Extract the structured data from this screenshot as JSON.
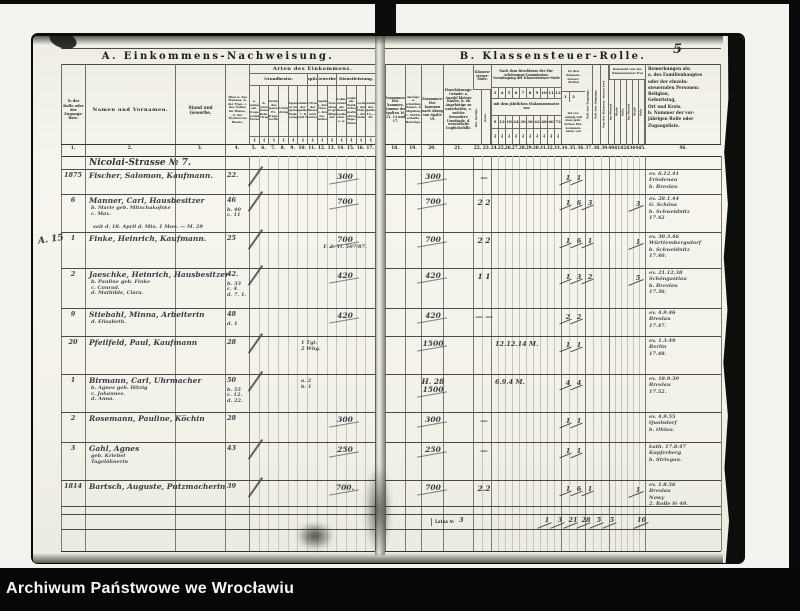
{
  "page_number": "5",
  "archive_bar": {
    "label": "Archiwum Państwowe we Wrocławiu"
  },
  "left_page": {
    "title": "A. Einkommens-Nachweisung.",
    "arten_header": "Arten des Einkommens.",
    "col_no": "№ der Rolle oder der Zugangs- liste.",
    "col_namen": "Namen und Vornamen.",
    "col_stand": "Stand und Gewerbe.",
    "col_alter": "Alter a. des Mannes, b. der Frau, c. der Söhne im Hause, d. der Töchter im Hause.",
    "groups": [
      {
        "label": "Grundbesitz.",
        "span": 6
      },
      {
        "label": "Kapital.",
        "span": 1
      },
      {
        "label": "Gewerbe.",
        "span": 2
      },
      {
        "label": "Dienstleistung.",
        "span": 4
      }
    ],
    "subcols": [
      "a. Regelmäßig ein- getragene Grund- stücke.",
      "b. Grund- steuer- Rein- ertrag.",
      "Betrag des ganzen Er- trags- werths.",
      "Wichtige Beiträge.",
      "Abgang bei der eigenen Woh- nung.",
      "Summe der Spalten 7, 8 und 9.",
      "Ertrag der Zinsen und Renten.",
      "Angabe a. der Frau, b. des Ge- sindes.",
      "Vom Betrage ist ge- fälligt auf",
      "Lohn, Gehalt als Diener, Gesellen, Boten u. s. w.",
      "Gewinn als Hand- werker, Künstler, Lehrer, Tage- löhner.",
      "Gewinn a. der Frau, b. der Kinder.",
      "Summe der Spalten 14.—16."
    ],
    "unit_mark": "₰",
    "col_numbers": [
      "1.",
      "2.",
      "3.",
      "4.",
      "5.",
      "6.",
      "7.",
      "8.",
      "9.",
      "10.",
      "11.",
      "12.",
      "13.",
      "14.",
      "15.",
      "16.",
      "17."
    ]
  },
  "right_page": {
    "title": "B. Klassensteuer-Rolle.",
    "col_zusammen": "Zusammen- Ein- kommen. Summe der Spalten 10, 11, 13 und 17.",
    "col_abzuege": "Abzüge: a. Schulden- Zinsen, b. Abgaben, c. Wirth- schafts- Beiträge.",
    "col_nach_abzug": "Zusammen- Ein- kommen nach Abzug von Spalte 19.",
    "col_gruende": "Einschätzungs- Gründe: a. Anzahl kleiner Kinder, b. ob Angehörige zu unterhalten, c. welche besondere Umstände, d. wesentliche Unglücksfälle.",
    "stufe_group": {
      "label": "Klassen- steuer- Stufe.",
      "subs": [
        "bis- herige.",
        "neue."
      ]
    },
    "commission_group": {
      "label": "Nach dem Beschlusse der Ein- schätzungs-Commission: Veranlagung der Klassensteuer-Stufe",
      "stufen": [
        "3",
        "4",
        "5",
        "6",
        "7",
        "8",
        "9",
        "10",
        "11",
        "12"
      ],
      "mid": "mit dem jährlichen Einkommensatze von",
      "saetze": [
        "9",
        "12",
        "18",
        "24",
        "30",
        "36",
        "42",
        "48",
        "60",
        "72"
      ]
    },
    "klassen_group": {
      "label": "In den Klassen- steuer- Stufen",
      "stufen": [
        "1",
        "2"
      ],
      "sub": "Ist ver- anlagt mit dem jähr- lichen Ein- kommen- satze von"
    },
    "zeit_cols": [
      "Zeit des Zugangs.",
      "Zeit des Abgangs.",
      "Von der Klassen- steuer frei."
    ],
    "bescheid_group": {
      "label": "Bescheid von der Klassensteuer frei",
      "subs": [
        "im Monat",
        "Stufe",
        "Satz",
        "im Monat",
        "Stufe",
        "Satz"
      ]
    },
    "col_bemerkungen": "Bemerkungen als:\na. des Familienhauptes\noder der einzeln-\nsteuernden Personen:\nReligion,\nGeburtstag,\nOrt und Kreis.\nb. Nummer der vor-\njährigen Rolle oder\nZugangsliste.",
    "col_numbers": [
      "18.",
      "19.",
      "20.",
      "21.",
      "22.",
      "23.",
      "24.",
      "25.",
      "26.",
      "27.",
      "28.",
      "29.",
      "30.",
      "31.",
      "32.",
      "33.",
      "34.",
      "35.",
      "36.",
      "37.",
      "38.",
      "39.",
      "40.",
      "41.",
      "42.",
      "43.",
      "44.",
      "45.",
      "46."
    ]
  },
  "rows": [
    {
      "street": "Nicolai-Strasse № 7."
    },
    {
      "no": "1875",
      "name": "Fischer, Salomon, Kaufmann.",
      "alter": [
        "22."
      ],
      "check": true,
      "amt_l": "300",
      "amt_r": "300",
      "stufe": "—",
      "marks": [
        "1",
        "1"
      ],
      "bem": [
        "ev. 6.12.41",
        "Friedenau",
        "b. Breslau"
      ]
    },
    {
      "no": "6",
      "name": "Manner, Carl, Hausbesitzer",
      "fam": [
        "b. Marie geb. Mitschakofske",
        "c. Max."
      ],
      "alter": [
        "46",
        "b. 40",
        "c. 11"
      ],
      "check": true,
      "note_wide": "seit d. 18. April d. Mts. 1 Mon. — M. 29",
      "amt_l": "700",
      "amt_r": "700",
      "stufe": "2 2",
      "marks": [
        "1",
        "6",
        "3"
      ],
      "extra": "3",
      "bem": [
        "ev. 28.1.44",
        "G. Schöna",
        "b. Schweidnitz",
        "17.42"
      ]
    },
    {
      "no": "1",
      "margin": "A. 15",
      "name": "Finke, Heinrich, Kaufmann.",
      "alter": [
        "25"
      ],
      "check": true,
      "amt_l": "700",
      "amt_l2": "F. 2. Tl. 507/87.",
      "amt_r": "700",
      "stufe": "2 2",
      "marks": [
        "1",
        "6",
        "1"
      ],
      "extra": "1",
      "bem": [
        "ev. 30.3.46",
        "Württembergsdorf",
        "b. Schweidnitz",
        "17.40."
      ]
    },
    {
      "no": "2",
      "name": "Jaeschke, Heinrich, Hausbesitzer",
      "fam": [
        "b. Pauline geb. Finke",
        "c. Conrad.",
        "d. Mathilde, Clara."
      ],
      "alter": [
        "42.",
        "b. 33",
        "c. 4.",
        "d. 7. 1."
      ],
      "check": true,
      "amt_l": "420",
      "amt_r": "420",
      "stufe": "1 1",
      "marks": [
        "1",
        "3",
        "2"
      ],
      "extra": "5",
      "bem": [
        "ev. 21.12.38",
        "Schöngastlau",
        "b. Breslau",
        "17.36."
      ]
    },
    {
      "no": "9",
      "name": "Stiebahl, Minna, Arbeiterin",
      "fam": [
        "d. Elisabeth."
      ],
      "alter": [
        "48",
        "d. 1"
      ],
      "amt_l": "420",
      "amt_r": "420",
      "stufe": "— —",
      "marks": [
        "2",
        "2"
      ],
      "bem": [
        "ev. 4.9.46",
        "Breslau",
        "17.47."
      ]
    },
    {
      "no": "20",
      "name": "Pfeilfeld, Paul, Kaufmann",
      "alter": [
        "28"
      ],
      "check": true,
      "note_small": [
        "1 Tgl.",
        "2 Whg."
      ],
      "amt_r": "1500",
      "stufe_note": "12.12.14 M.",
      "marks": [
        "1",
        "1"
      ],
      "bem": [
        "ev. 1.3.49",
        "Berlin",
        "17.48."
      ]
    },
    {
      "no": "1",
      "name": "Birmann, Carl, Uhrmacher",
      "fam": [
        "b. Agnes geb. Hitzig",
        "c. Johannes.",
        "d. Anna."
      ],
      "alter": [
        "50",
        "b. 55",
        "c. 12.",
        "d. 22."
      ],
      "check": true,
      "note_small": [
        "a. 2",
        "b. 1"
      ],
      "amt_r": "H. 28 / 1500",
      "stufe_note": "6.9.4 M.",
      "marks": [
        "4",
        "4"
      ],
      "bem": [
        "ev. 18.9.39",
        "Breslau",
        "17.52."
      ]
    },
    {
      "no": "2",
      "name": "Rosemann, Pauline, Köchin",
      "alter": [
        "28"
      ],
      "amt_l": "300",
      "amt_r": "300",
      "stufe": "—",
      "marks": [
        "1",
        "1"
      ],
      "bem": [
        "ev. 4.9.55",
        "Quolsdorf",
        "b. Ohlau."
      ]
    },
    {
      "no": "3",
      "name": "Gahl, Agnes",
      "fam": [
        "geb. Kriebel",
        "Tagelöhnerin"
      ],
      "alter": [
        "43"
      ],
      "check": true,
      "amt_l": "250",
      "amt_r": "250",
      "stufe": "—",
      "marks": [
        "1",
        "1"
      ],
      "bem": [
        "kath. 17.8.47",
        "Kupferberg",
        "b. Striegau."
      ]
    },
    {
      "no": "1814",
      "name": "Bartsch, Auguste, Putzmacherin",
      "alter": [
        "39"
      ],
      "check": true,
      "amt_l": "700.",
      "amt_r": "700",
      "stufe": "2.2",
      "marks": [
        "1",
        "6",
        "1"
      ],
      "extra": "1",
      "bem": [
        "ev. 1.8.56",
        "Breslau",
        "Nowy",
        "2. Rolle № 49."
      ]
    },
    {
      "blank": true
    },
    {
      "latus": true
    }
  ],
  "latus": {
    "label": "Latus №",
    "value": "3",
    "sums": [
      "1",
      "3",
      "21",
      "28",
      "5",
      "5"
    ],
    "extra": "10"
  }
}
